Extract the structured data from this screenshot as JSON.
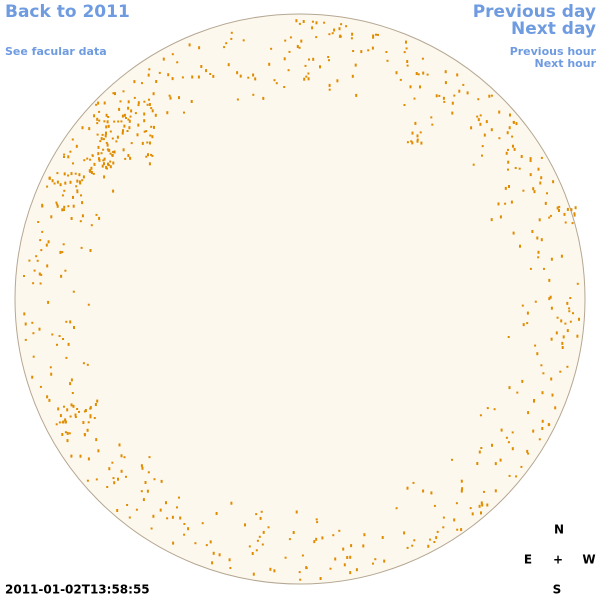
{
  "links": {
    "back": "Back to 2011",
    "facular_data": "See facular data",
    "previous_day": "Previous day",
    "next_day": "Next day",
    "previous_hour": "Previous hour",
    "next_hour": "Next hour"
  },
  "timestamp": "2011-01-02T13:58:55",
  "compass": {
    "north": "N",
    "east": "E",
    "center": "+",
    "west": "W",
    "south": "S"
  }
}
